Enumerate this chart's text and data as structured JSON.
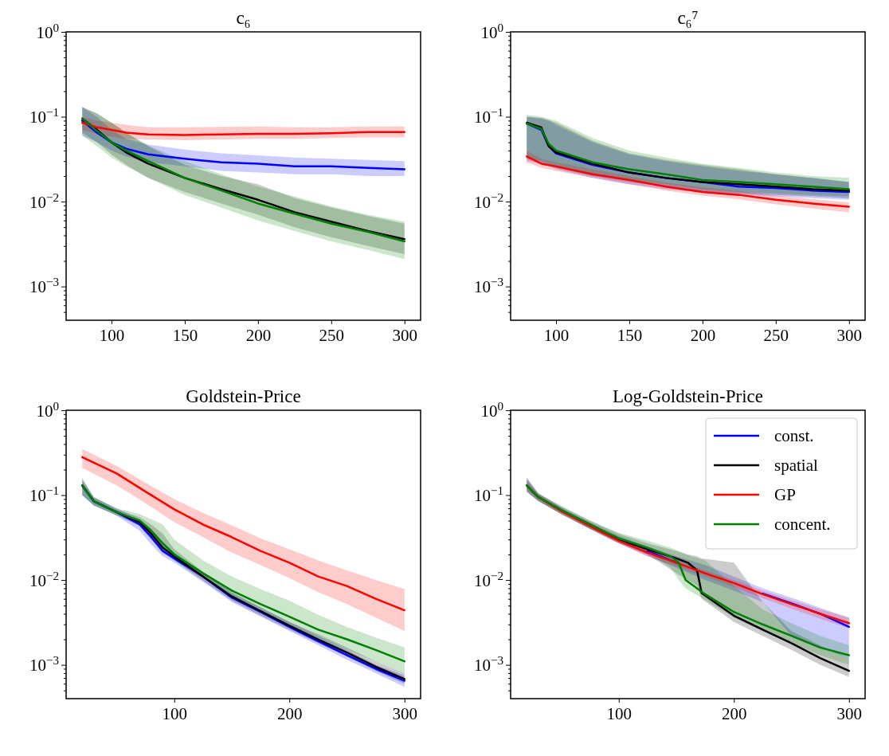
{
  "chart_data": [
    {
      "type": "line",
      "title": "c₆",
      "xlim": [
        69,
        311
      ],
      "xticks": [
        100,
        150,
        200,
        250,
        300
      ],
      "log": "y",
      "ylim": [
        0.0004,
        1
      ],
      "yticks": [
        {
          "value": 1,
          "label": "10$^{0}$"
        },
        {
          "value": 0.1,
          "label": "10$^{−1}$"
        },
        {
          "value": 0.01,
          "label": "10$^{−2}$"
        },
        {
          "value": 0.001,
          "label": "10$^{−3}$"
        },
        {
          "value": 0.9,
          "label": null
        },
        {
          "value": 0.8,
          "label": null
        },
        {
          "value": 0.7,
          "label": null
        },
        {
          "value": 0.6,
          "label": null
        },
        {
          "value": 0.5,
          "label": null
        },
        {
          "value": 0.4,
          "label": null
        },
        {
          "value": 0.3,
          "label": null
        },
        {
          "value": 0.2,
          "label": null
        },
        {
          "value": 0.09,
          "label": null
        },
        {
          "value": 0.08,
          "label": null
        },
        {
          "value": 0.07,
          "label": null
        },
        {
          "value": 0.06,
          "label": null
        },
        {
          "value": 0.05,
          "label": null
        },
        {
          "value": 0.04,
          "label": null
        },
        {
          "value": 0.03,
          "label": null
        },
        {
          "value": 0.02,
          "label": null
        },
        {
          "value": 0.009,
          "label": null
        },
        {
          "value": 0.008,
          "label": null
        },
        {
          "value": 0.007,
          "label": null
        },
        {
          "value": 0.006,
          "label": null
        },
        {
          "value": 0.005,
          "label": null
        },
        {
          "value": 0.004,
          "label": null
        },
        {
          "value": 0.003,
          "label": null
        },
        {
          "value": 0.002,
          "label": null
        },
        {
          "value": 0.0009,
          "label": null
        },
        {
          "value": 0.0008,
          "label": null
        },
        {
          "value": 0.0007,
          "label": null
        },
        {
          "value": 0.0006,
          "label": null
        },
        {
          "value": 0.0005,
          "label": null
        }
      ],
      "line_style": "solid",
      "marker": "none",
      "grid": false,
      "legend": false,
      "series": [
        {
          "color": "#0000ff",
          "x": [
            80,
            90,
            100,
            110,
            125,
            150,
            175,
            200,
            225,
            250,
            275,
            300
          ],
          "values": [
            0.09,
            0.065,
            0.05,
            0.042,
            0.036,
            0.032,
            0.029,
            0.028,
            0.026,
            0.026,
            0.025,
            0.024
          ],
          "lower": [
            0.06,
            0.05,
            0.04,
            0.034,
            0.029,
            0.026,
            0.023,
            0.022,
            0.021,
            0.021,
            0.02,
            0.02
          ],
          "upper": [
            0.13,
            0.1,
            0.07,
            0.055,
            0.047,
            0.041,
            0.037,
            0.035,
            0.033,
            0.032,
            0.031,
            0.03
          ]
        },
        {
          "color": "#000000",
          "x": [
            80,
            90,
            100,
            110,
            125,
            150,
            175,
            200,
            225,
            250,
            275,
            300
          ],
          "values": [
            0.095,
            0.07,
            0.05,
            0.038,
            0.028,
            0.019,
            0.014,
            0.0105,
            0.0075,
            0.0058,
            0.0045,
            0.0036
          ],
          "lower": [
            0.065,
            0.05,
            0.036,
            0.027,
            0.019,
            0.013,
            0.0095,
            0.007,
            0.005,
            0.0038,
            0.003,
            0.0024
          ],
          "upper": [
            0.13,
            0.11,
            0.085,
            0.065,
            0.045,
            0.027,
            0.02,
            0.016,
            0.011,
            0.0085,
            0.0068,
            0.0055
          ]
        },
        {
          "color": "#ff0000",
          "x": [
            80,
            90,
            100,
            110,
            125,
            150,
            175,
            200,
            225,
            250,
            275,
            300
          ],
          "values": [
            0.085,
            0.075,
            0.07,
            0.065,
            0.062,
            0.061,
            0.062,
            0.063,
            0.063,
            0.064,
            0.066,
            0.066
          ],
          "lower": [
            0.07,
            0.063,
            0.058,
            0.055,
            0.054,
            0.053,
            0.054,
            0.055,
            0.055,
            0.056,
            0.057,
            0.057
          ],
          "upper": [
            0.1,
            0.09,
            0.085,
            0.08,
            0.075,
            0.075,
            0.076,
            0.077,
            0.075,
            0.075,
            0.077,
            0.077
          ]
        },
        {
          "color": "#008000",
          "x": [
            80,
            90,
            100,
            110,
            125,
            150,
            175,
            200,
            225,
            250,
            275,
            300
          ],
          "values": [
            0.095,
            0.068,
            0.05,
            0.04,
            0.03,
            0.019,
            0.0135,
            0.0095,
            0.0072,
            0.0055,
            0.0044,
            0.0034
          ],
          "lower": [
            0.06,
            0.045,
            0.033,
            0.026,
            0.019,
            0.012,
            0.0085,
            0.006,
            0.0045,
            0.0034,
            0.0027,
            0.0021
          ],
          "upper": [
            0.13,
            0.11,
            0.085,
            0.065,
            0.046,
            0.03,
            0.021,
            0.015,
            0.0115,
            0.0088,
            0.007,
            0.0058
          ]
        }
      ]
    },
    {
      "type": "line",
      "title": "c₆⁷",
      "xlim": [
        69,
        311
      ],
      "xticks": [
        100,
        150,
        200,
        250,
        300
      ],
      "log": "y",
      "ylim": [
        0.0004,
        1
      ],
      "yticks": [
        {
          "value": 1,
          "label": "10$^{0}$"
        },
        {
          "value": 0.1,
          "label": "10$^{−1}$"
        },
        {
          "value": 0.01,
          "label": "10$^{−2}$"
        },
        {
          "value": 0.001,
          "label": "10$^{−3}$"
        },
        {
          "value": 0.9,
          "label": null
        },
        {
          "value": 0.8,
          "label": null
        },
        {
          "value": 0.7,
          "label": null
        },
        {
          "value": 0.6,
          "label": null
        },
        {
          "value": 0.5,
          "label": null
        },
        {
          "value": 0.4,
          "label": null
        },
        {
          "value": 0.3,
          "label": null
        },
        {
          "value": 0.2,
          "label": null
        },
        {
          "value": 0.09,
          "label": null
        },
        {
          "value": 0.08,
          "label": null
        },
        {
          "value": 0.07,
          "label": null
        },
        {
          "value": 0.06,
          "label": null
        },
        {
          "value": 0.05,
          "label": null
        },
        {
          "value": 0.04,
          "label": null
        },
        {
          "value": 0.03,
          "label": null
        },
        {
          "value": 0.02,
          "label": null
        },
        {
          "value": 0.009,
          "label": null
        },
        {
          "value": 0.008,
          "label": null
        },
        {
          "value": 0.007,
          "label": null
        },
        {
          "value": 0.006,
          "label": null
        },
        {
          "value": 0.005,
          "label": null
        },
        {
          "value": 0.004,
          "label": null
        },
        {
          "value": 0.003,
          "label": null
        },
        {
          "value": 0.002,
          "label": null
        },
        {
          "value": 0.0009,
          "label": null
        },
        {
          "value": 0.0008,
          "label": null
        },
        {
          "value": 0.0007,
          "label": null
        },
        {
          "value": 0.0006,
          "label": null
        },
        {
          "value": 0.0005,
          "label": null
        }
      ],
      "line_style": "solid",
      "marker": "none",
      "grid": false,
      "legend": false,
      "series": [
        {
          "color": "#0000ff",
          "x": [
            80,
            90,
            95,
            100,
            125,
            150,
            175,
            200,
            225,
            250,
            275,
            300
          ],
          "values": [
            0.083,
            0.07,
            0.045,
            0.037,
            0.027,
            0.022,
            0.019,
            0.017,
            0.015,
            0.0145,
            0.0135,
            0.013
          ],
          "lower": [
            0.03,
            0.028,
            0.026,
            0.024,
            0.019,
            0.016,
            0.014,
            0.013,
            0.012,
            0.0115,
            0.011,
            0.0105
          ],
          "upper": [
            0.1,
            0.095,
            0.09,
            0.08,
            0.05,
            0.036,
            0.03,
            0.026,
            0.023,
            0.021,
            0.019,
            0.017
          ]
        },
        {
          "color": "#000000",
          "x": [
            80,
            90,
            95,
            100,
            125,
            150,
            175,
            200,
            225,
            250,
            275,
            300
          ],
          "values": [
            0.085,
            0.075,
            0.045,
            0.038,
            0.028,
            0.022,
            0.019,
            0.017,
            0.016,
            0.015,
            0.014,
            0.0135
          ],
          "lower": [
            0.032,
            0.029,
            0.027,
            0.025,
            0.02,
            0.017,
            0.015,
            0.013,
            0.0125,
            0.012,
            0.0115,
            0.011
          ],
          "upper": [
            0.1,
            0.097,
            0.092,
            0.085,
            0.052,
            0.037,
            0.031,
            0.027,
            0.024,
            0.021,
            0.019,
            0.017
          ]
        },
        {
          "color": "#ff0000",
          "x": [
            80,
            90,
            100,
            125,
            150,
            175,
            200,
            225,
            250,
            275,
            300
          ],
          "values": [
            0.034,
            0.028,
            0.026,
            0.021,
            0.018,
            0.015,
            0.013,
            0.012,
            0.0105,
            0.0095,
            0.0087
          ],
          "lower": [
            0.029,
            0.025,
            0.023,
            0.019,
            0.016,
            0.0135,
            0.0117,
            0.0106,
            0.0093,
            0.0083,
            0.0075
          ],
          "upper": [
            0.04,
            0.032,
            0.029,
            0.024,
            0.02,
            0.0168,
            0.0147,
            0.0134,
            0.0118,
            0.0107,
            0.0098
          ]
        },
        {
          "color": "#008000",
          "x": [
            80,
            90,
            95,
            100,
            125,
            150,
            175,
            200,
            225,
            250,
            275,
            300
          ],
          "values": [
            0.083,
            0.072,
            0.048,
            0.04,
            0.029,
            0.024,
            0.021,
            0.018,
            0.017,
            0.016,
            0.015,
            0.014
          ],
          "lower": [
            0.033,
            0.03,
            0.028,
            0.026,
            0.021,
            0.018,
            0.016,
            0.014,
            0.013,
            0.0125,
            0.012,
            0.0115
          ],
          "upper": [
            0.105,
            0.1,
            0.095,
            0.09,
            0.056,
            0.04,
            0.033,
            0.028,
            0.025,
            0.022,
            0.02,
            0.019
          ]
        }
      ]
    },
    {
      "type": "line",
      "title": "Goldstein-Price",
      "xlim": [
        6,
        314
      ],
      "xticks": [
        100,
        200,
        300
      ],
      "log": "y",
      "ylim": [
        0.0004,
        1
      ],
      "yticks": [
        {
          "value": 1,
          "label": "10$^{0}$"
        },
        {
          "value": 0.1,
          "label": "10$^{−1}$"
        },
        {
          "value": 0.01,
          "label": "10$^{−2}$"
        },
        {
          "value": 0.001,
          "label": "10$^{−3}$"
        },
        {
          "value": 0.9,
          "label": null
        },
        {
          "value": 0.8,
          "label": null
        },
        {
          "value": 0.7,
          "label": null
        },
        {
          "value": 0.6,
          "label": null
        },
        {
          "value": 0.5,
          "label": null
        },
        {
          "value": 0.4,
          "label": null
        },
        {
          "value": 0.3,
          "label": null
        },
        {
          "value": 0.2,
          "label": null
        },
        {
          "value": 0.09,
          "label": null
        },
        {
          "value": 0.08,
          "label": null
        },
        {
          "value": 0.07,
          "label": null
        },
        {
          "value": 0.06,
          "label": null
        },
        {
          "value": 0.05,
          "label": null
        },
        {
          "value": 0.04,
          "label": null
        },
        {
          "value": 0.03,
          "label": null
        },
        {
          "value": 0.02,
          "label": null
        },
        {
          "value": 0.009,
          "label": null
        },
        {
          "value": 0.008,
          "label": null
        },
        {
          "value": 0.007,
          "label": null
        },
        {
          "value": 0.006,
          "label": null
        },
        {
          "value": 0.005,
          "label": null
        },
        {
          "value": 0.004,
          "label": null
        },
        {
          "value": 0.003,
          "label": null
        },
        {
          "value": 0.002,
          "label": null
        },
        {
          "value": 0.0009,
          "label": null
        },
        {
          "value": 0.0008,
          "label": null
        },
        {
          "value": 0.0007,
          "label": null
        },
        {
          "value": 0.0006,
          "label": null
        },
        {
          "value": 0.0005,
          "label": null
        }
      ],
      "line_style": "solid",
      "marker": "none",
      "grid": false,
      "legend": false,
      "series": [
        {
          "color": "#0000ff",
          "x": [
            20,
            30,
            50,
            70,
            80,
            90,
            100,
            125,
            150,
            175,
            200,
            225,
            250,
            275,
            300
          ],
          "values": [
            0.13,
            0.085,
            0.063,
            0.045,
            0.032,
            0.022,
            0.018,
            0.011,
            0.0062,
            0.0042,
            0.0028,
            0.0019,
            0.0013,
            0.0009,
            0.00065
          ],
          "lower": [
            0.1,
            0.075,
            0.057,
            0.038,
            0.026,
            0.019,
            0.016,
            0.0095,
            0.0055,
            0.0037,
            0.0025,
            0.0017,
            0.00115,
            0.0008,
            0.00055
          ],
          "upper": [
            0.15,
            0.095,
            0.07,
            0.052,
            0.04,
            0.028,
            0.021,
            0.012,
            0.007,
            0.0047,
            0.0032,
            0.0022,
            0.0015,
            0.001,
            0.00075
          ]
        },
        {
          "color": "#000000",
          "x": [
            20,
            30,
            50,
            70,
            80,
            90,
            100,
            125,
            150,
            175,
            200,
            225,
            250,
            275,
            300
          ],
          "values": [
            0.13,
            0.085,
            0.063,
            0.048,
            0.035,
            0.024,
            0.019,
            0.011,
            0.0064,
            0.0043,
            0.0029,
            0.002,
            0.0014,
            0.00095,
            0.00068
          ],
          "lower": [
            0.1,
            0.076,
            0.058,
            0.043,
            0.03,
            0.021,
            0.017,
            0.0098,
            0.0057,
            0.0038,
            0.0026,
            0.0018,
            0.00125,
            0.00085,
            0.0006
          ],
          "upper": [
            0.16,
            0.095,
            0.068,
            0.055,
            0.045,
            0.035,
            0.023,
            0.0125,
            0.0072,
            0.0048,
            0.0032,
            0.0023,
            0.0016,
            0.0011,
            0.0008
          ]
        },
        {
          "color": "#ff0000",
          "x": [
            20,
            50,
            75,
            100,
            125,
            150,
            175,
            200,
            225,
            250,
            275,
            300
          ],
          "values": [
            0.28,
            0.18,
            0.11,
            0.068,
            0.045,
            0.032,
            0.022,
            0.016,
            0.011,
            0.0085,
            0.006,
            0.0044
          ],
          "lower": [
            0.21,
            0.13,
            0.08,
            0.048,
            0.032,
            0.021,
            0.015,
            0.0105,
            0.0072,
            0.0052,
            0.0036,
            0.0025
          ],
          "upper": [
            0.35,
            0.22,
            0.14,
            0.09,
            0.062,
            0.044,
            0.031,
            0.023,
            0.017,
            0.013,
            0.01,
            0.0078
          ]
        },
        {
          "color": "#008000",
          "x": [
            20,
            30,
            50,
            70,
            80,
            90,
            100,
            125,
            150,
            175,
            200,
            225,
            250,
            275,
            300
          ],
          "values": [
            0.13,
            0.085,
            0.063,
            0.05,
            0.038,
            0.027,
            0.02,
            0.012,
            0.0075,
            0.0052,
            0.0037,
            0.0026,
            0.002,
            0.0015,
            0.0011
          ],
          "lower": [
            0.1,
            0.076,
            0.058,
            0.045,
            0.033,
            0.023,
            0.017,
            0.0105,
            0.0065,
            0.0045,
            0.003,
            0.0021,
            0.0015,
            0.0011,
            0.0008
          ],
          "upper": [
            0.15,
            0.095,
            0.07,
            0.06,
            0.052,
            0.045,
            0.03,
            0.017,
            0.011,
            0.0078,
            0.0057,
            0.0039,
            0.0028,
            0.0021,
            0.0016
          ]
        }
      ]
    },
    {
      "type": "line",
      "title": "Log-Goldstein-Price",
      "xlim": [
        6,
        314
      ],
      "xticks": [
        100,
        200,
        300
      ],
      "log": "y",
      "ylim": [
        0.0004,
        1
      ],
      "yticks": [
        {
          "value": 1,
          "label": "10$^{0}$"
        },
        {
          "value": 0.1,
          "label": "10$^{−1}$"
        },
        {
          "value": 0.01,
          "label": "10$^{−2}$"
        },
        {
          "value": 0.001,
          "label": "10$^{−3}$"
        },
        {
          "value": 0.9,
          "label": null
        },
        {
          "value": 0.8,
          "label": null
        },
        {
          "value": 0.7,
          "label": null
        },
        {
          "value": 0.6,
          "label": null
        },
        {
          "value": 0.5,
          "label": null
        },
        {
          "value": 0.4,
          "label": null
        },
        {
          "value": 0.3,
          "label": null
        },
        {
          "value": 0.2,
          "label": null
        },
        {
          "value": 0.09,
          "label": null
        },
        {
          "value": 0.08,
          "label": null
        },
        {
          "value": 0.07,
          "label": null
        },
        {
          "value": 0.06,
          "label": null
        },
        {
          "value": 0.05,
          "label": null
        },
        {
          "value": 0.04,
          "label": null
        },
        {
          "value": 0.03,
          "label": null
        },
        {
          "value": 0.02,
          "label": null
        },
        {
          "value": 0.009,
          "label": null
        },
        {
          "value": 0.008,
          "label": null
        },
        {
          "value": 0.007,
          "label": null
        },
        {
          "value": 0.006,
          "label": null
        },
        {
          "value": 0.005,
          "label": null
        },
        {
          "value": 0.004,
          "label": null
        },
        {
          "value": 0.003,
          "label": null
        },
        {
          "value": 0.002,
          "label": null
        },
        {
          "value": 0.0009,
          "label": null
        },
        {
          "value": 0.0008,
          "label": null
        },
        {
          "value": 0.0007,
          "label": null
        },
        {
          "value": 0.0006,
          "label": null
        },
        {
          "value": 0.0005,
          "label": null
        }
      ],
      "line_style": "solid",
      "marker": "none",
      "grid": false,
      "legend": "top right",
      "series": [
        {
          "name": "const.",
          "color": "#0000ff",
          "x": [
            20,
            30,
            50,
            75,
            100,
            125,
            150,
            175,
            200,
            225,
            250,
            275,
            300
          ],
          "values": [
            null,
            null,
            null,
            null,
            null,
            0.022,
            0.016,
            null,
            null,
            0.0069,
            0.0053,
            0.004,
            0.0028
          ],
          "lower": [
            0.11,
            0.085,
            0.06,
            0.04,
            0.027,
            0.019,
            0.014,
            0.01,
            0.0075,
            0.0055,
            0.0022,
            0.0016,
            0.0012
          ],
          "upper": [
            0.16,
            0.105,
            0.072,
            0.048,
            0.033,
            0.025,
            0.019,
            0.015,
            0.011,
            0.008,
            0.0062,
            0.0047,
            0.0036
          ]
        },
        {
          "name": "spatial",
          "color": "#000000",
          "x": [
            20,
            30,
            50,
            75,
            100,
            125,
            150,
            160,
            168,
            172,
            200,
            225,
            250,
            275,
            300
          ],
          "values": [
            0.13,
            0.095,
            0.066,
            0.045,
            0.03,
            0.023,
            0.018,
            0.016,
            0.013,
            0.007,
            0.0038,
            0.0026,
            0.0018,
            0.0012,
            0.00085
          ],
          "lower": [
            0.11,
            0.085,
            0.06,
            0.04,
            0.027,
            0.02,
            0.012,
            0.01,
            0.0085,
            0.006,
            0.0032,
            0.0022,
            0.0015,
            0.001,
            0.00072
          ],
          "upper": [
            0.16,
            0.105,
            0.073,
            0.05,
            0.035,
            0.027,
            0.022,
            0.02,
            0.019,
            0.018,
            0.016,
            0.0055,
            0.0025,
            0.0017,
            0.0012
          ]
        },
        {
          "name": "GP",
          "color": "#ff0000",
          "x": [
            20,
            30,
            50,
            75,
            100,
            125,
            150,
            175,
            200,
            225,
            250,
            275,
            300
          ],
          "values": [
            null,
            0.095,
            0.065,
            0.043,
            0.029,
            0.021,
            0.016,
            0.012,
            0.0092,
            0.0068,
            0.0052,
            0.004,
            0.0031
          ],
          "lower": [
            0.115,
            0.087,
            0.06,
            0.04,
            0.027,
            0.019,
            0.0145,
            0.011,
            0.0083,
            0.0061,
            0.0046,
            0.0035,
            0.0027
          ],
          "upper": [
            0.145,
            0.103,
            0.07,
            0.046,
            0.031,
            0.023,
            0.0175,
            0.013,
            0.01,
            0.0075,
            0.0058,
            0.0045,
            0.0036
          ]
        },
        {
          "name": "concent.",
          "color": "#008000",
          "x": [
            20,
            30,
            50,
            75,
            100,
            125,
            145,
            152,
            158,
            175,
            200,
            225,
            250,
            275,
            300
          ],
          "values": [
            0.13,
            0.095,
            0.067,
            0.045,
            0.031,
            0.024,
            0.019,
            0.016,
            0.01,
            0.0068,
            0.0042,
            0.003,
            0.0022,
            0.0016,
            0.0013
          ],
          "lower": [
            0.11,
            0.085,
            0.06,
            0.04,
            0.028,
            0.021,
            0.014,
            0.01,
            0.008,
            0.0058,
            0.0036,
            0.0025,
            0.0018,
            0.0013,
            0.001
          ],
          "upper": [
            0.15,
            0.105,
            0.075,
            0.05,
            0.036,
            0.029,
            0.024,
            0.022,
            0.02,
            0.017,
            0.0085,
            0.0045,
            0.0031,
            0.0022,
            0.0017
          ]
        }
      ]
    }
  ]
}
